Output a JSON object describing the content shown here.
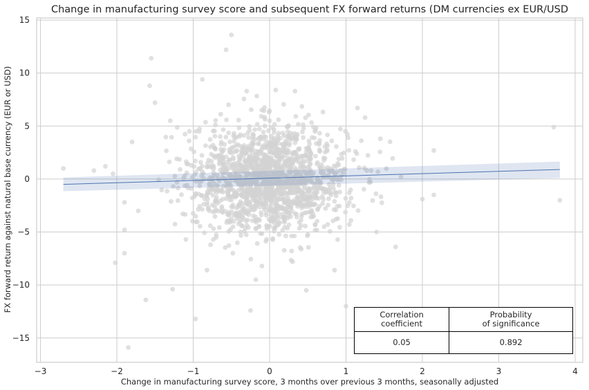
{
  "chart_data": {
    "type": "scatter",
    "title": "Change in manufacturing survey score and subsequent FX forward returns (DM currencies ex EUR/USD",
    "xlabel": "Change in manufacturing survey score, 3 months over previous 3 months, seasonally adjusted",
    "ylabel": "FX forward return against natural base currency (EUR or USD)",
    "xlim": [
      -3.05,
      4.1
    ],
    "ylim": [
      -17.3,
      15.2
    ],
    "x_ticks": [
      -3,
      -2,
      -1,
      0,
      1,
      2,
      3,
      4
    ],
    "y_ticks": [
      -15,
      -10,
      -5,
      0,
      5,
      10,
      15
    ],
    "grid": true,
    "point_color": "#d3d3d3",
    "line_color": "#4c72b0",
    "regression": {
      "x": [
        -2.7,
        3.8
      ],
      "y": [
        -0.5,
        0.9
      ],
      "ci_lower": [
        -1.15,
        0.1
      ],
      "ci_upper": [
        0.15,
        1.65
      ]
    },
    "points": [
      {
        "x": -0.5,
        "y": 13.6
      },
      {
        "x": -0.57,
        "y": 12.2
      },
      {
        "x": -1.55,
        "y": 11.4
      },
      {
        "x": -0.88,
        "y": 9.4
      },
      {
        "x": -1.57,
        "y": 8.8
      },
      {
        "x": -1.5,
        "y": 7.2
      },
      {
        "x": 1.15,
        "y": 6.7
      },
      {
        "x": 3.72,
        "y": 4.9
      },
      {
        "x": 3.8,
        "y": -2.0
      },
      {
        "x": -2.7,
        "y": 1.0
      },
      {
        "x": -2.3,
        "y": 0.8
      },
      {
        "x": -2.15,
        "y": 1.2
      },
      {
        "x": -2.05,
        "y": 0.5
      },
      {
        "x": 2.15,
        "y": 2.7
      },
      {
        "x": 2.15,
        "y": -1.5
      },
      {
        "x": 1.72,
        "y": 0.2
      },
      {
        "x": -1.9,
        "y": -4.8
      },
      {
        "x": -2.02,
        "y": -7.9
      },
      {
        "x": -1.85,
        "y": -15.9
      },
      {
        "x": -1.62,
        "y": -11.4
      },
      {
        "x": -1.27,
        "y": -10.4
      },
      {
        "x": -0.97,
        "y": -13.2
      },
      {
        "x": -0.25,
        "y": -12.4
      },
      {
        "x": 1.0,
        "y": -12.0
      },
      {
        "x": 1.65,
        "y": -6.4
      },
      {
        "x": 0.48,
        "y": -10.5
      },
      {
        "x": -1.05,
        "y": 4.5
      },
      {
        "x": -1.72,
        "y": -3.0
      },
      {
        "x": -1.3,
        "y": 5.5
      },
      {
        "x": -0.3,
        "y": 8.3
      },
      {
        "x": 0.08,
        "y": 8.4
      },
      {
        "x": 0.85,
        "y": -8.6
      },
      {
        "x": -0.82,
        "y": -8.6
      },
      {
        "x": -0.18,
        "y": -9.5
      },
      {
        "x": 0.3,
        "y": -7.8
      },
      {
        "x": 1.25,
        "y": 5.8
      },
      {
        "x": -1.8,
        "y": 3.5
      },
      {
        "x": 1.45,
        "y": 3.8
      },
      {
        "x": 2.0,
        "y": -1.9
      },
      {
        "x": 1.4,
        "y": -5.0
      }
    ],
    "dense_cloud": {
      "count": 1700,
      "x_mean": 0.0,
      "x_sd": 0.5,
      "y_mean": 0.0,
      "y_sd": 2.5
    }
  },
  "stats_table": {
    "col1_header_line1": "Correlation",
    "col1_header_line2": "coefficient",
    "col2_header_line1": "Probability",
    "col2_header_line2": "of significance",
    "correlation": "0.05",
    "probability": "0.892"
  }
}
